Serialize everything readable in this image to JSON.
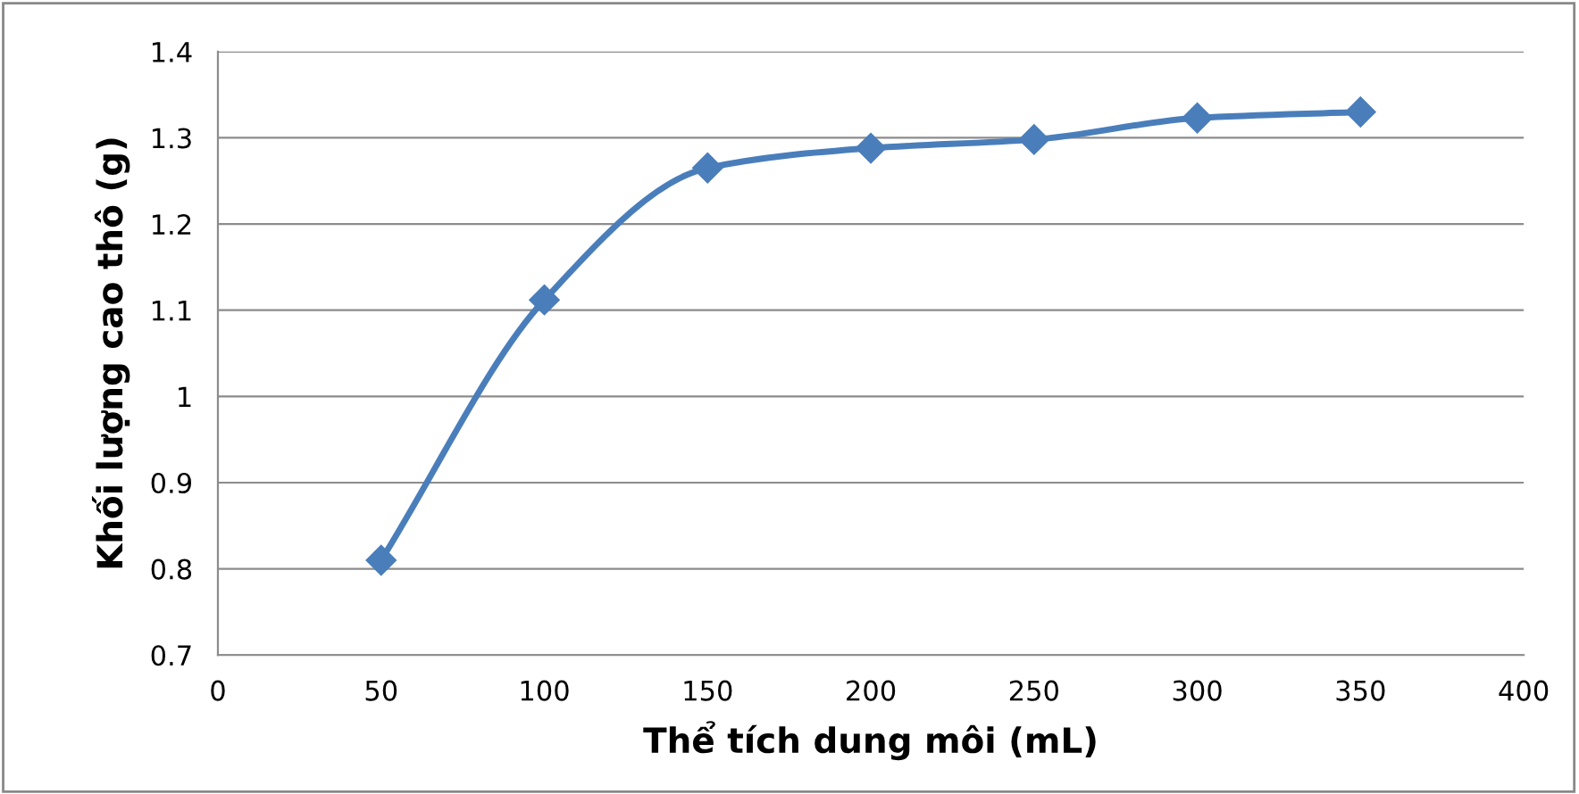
{
  "chart_data": {
    "type": "line",
    "xlabel": "Thể tích dung môi (mL)",
    "ylabel": "Khối lượng cao thô (g)",
    "x": [
      50,
      100,
      150,
      200,
      250,
      300,
      350
    ],
    "series": [
      {
        "color": "#4a7ebb",
        "values": [
          0.81,
          1.112,
          1.265,
          1.288,
          1.298,
          1.323,
          1.33
        ]
      }
    ],
    "xlim": [
      0,
      400
    ],
    "xticks": [
      0,
      50,
      100,
      150,
      200,
      250,
      300,
      350,
      400
    ],
    "ylim": [
      0.7,
      1.4
    ],
    "yticks": [
      0.7,
      0.8,
      0.9,
      1,
      1.1,
      1.2,
      1.3,
      1.4
    ],
    "grid": "y",
    "legend": false,
    "marker": "diamond",
    "line_style": "solid"
  }
}
